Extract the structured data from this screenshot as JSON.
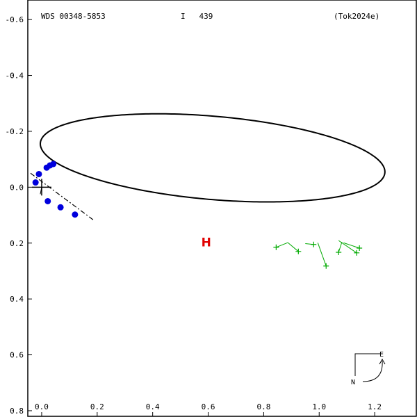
{
  "header": {
    "wds_id": "WDS 00348-5853",
    "discoverer": "I   439",
    "reference": "(Tok2024e)"
  },
  "compass": {
    "east_label": "E",
    "north_label": "N"
  },
  "chart_data": {
    "type": "scatter",
    "title": "",
    "xlabel": "",
    "ylabel": "",
    "xlim": [
      -0.05,
      1.35
    ],
    "ylim": [
      0.67,
      -0.82
    ],
    "grid": false,
    "x_ticks": [
      0.0,
      0.2,
      0.4,
      0.6,
      0.8,
      1.0,
      1.2
    ],
    "x_tick_labels": [
      "0.0",
      "0.2",
      "0.4",
      "0.6",
      "0.8",
      "1.0",
      "1.2"
    ],
    "y_ticks": [
      -0.8,
      -0.6,
      -0.4,
      -0.2,
      0.0,
      0.2,
      0.4,
      0.6
    ],
    "y_tick_labels": [
      "0.8",
      "0.6",
      "0.4",
      "0.2",
      "0.0",
      "-0.2",
      "-0.4",
      "-0.6"
    ],
    "primary_star": [
      0.0,
      0.0
    ],
    "orbit": {
      "center": [
        0.616,
        0.105
      ],
      "a": 0.623,
      "b": 0.149,
      "angle_deg": -4.9
    },
    "line_of_nodes": [
      [
        -0.04,
        0.05
      ],
      [
        0.19,
        -0.12
      ]
    ],
    "periastron_segment": [
      [
        0.0,
        0.0
      ],
      [
        -0.005,
        -0.025
      ]
    ],
    "hipparcos_point": [
      0.593,
      -0.197
    ],
    "hipparcos_label": "H",
    "micrometer_points": [
      [
        0.845,
        -0.215
      ],
      [
        0.925,
        -0.23
      ],
      [
        0.98,
        -0.205
      ],
      [
        1.025,
        -0.282
      ],
      [
        1.07,
        -0.233
      ],
      [
        1.135,
        -0.235
      ],
      [
        1.145,
        -0.218
      ]
    ],
    "micrometer_residual_ends": [
      [
        0.888,
        -0.198
      ],
      [
        0.888,
        -0.199
      ],
      [
        0.95,
        -0.202
      ],
      [
        0.995,
        -0.199
      ],
      [
        1.082,
        -0.196
      ],
      [
        1.07,
        -0.191
      ],
      [
        1.088,
        -0.199
      ]
    ],
    "speckle_points": [
      [
        0.12,
        -0.098
      ],
      [
        0.068,
        -0.072
      ],
      [
        0.022,
        -0.05
      ],
      [
        -0.022,
        0.017
      ],
      [
        -0.01,
        0.047
      ],
      [
        0.018,
        0.07
      ],
      [
        0.03,
        0.078
      ],
      [
        0.042,
        0.083
      ]
    ],
    "colors": {
      "orbit": "#000000",
      "speckle": "#0000dd",
      "micrometer": "#00aa00",
      "hipparcos": "#e00000"
    }
  }
}
